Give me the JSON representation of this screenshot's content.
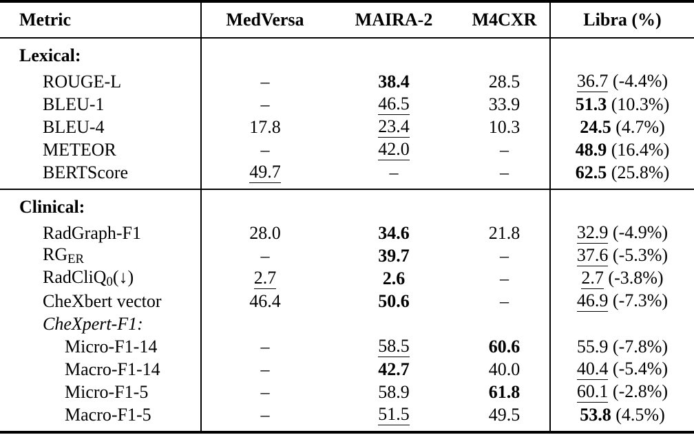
{
  "table": {
    "colors": {
      "text": "#000000",
      "background": "#ffffff",
      "rule": "#000000"
    },
    "headers": [
      {
        "label": "Metric"
      },
      {
        "label": "MedVersa"
      },
      {
        "label": "MAIRA-2"
      },
      {
        "label": "M4CXR"
      },
      {
        "label": "Libra (%)"
      }
    ],
    "rows": [
      {
        "type": "section",
        "indent": 0,
        "label": "Lexical:"
      },
      {
        "type": "metric",
        "indent": 1,
        "label": "ROUGE-L",
        "cells": [
          {
            "v": "–"
          },
          {
            "v": "38.4",
            "emph": "bold"
          },
          {
            "v": "28.5"
          },
          {
            "v": "36.7",
            "emph": "underline",
            "pct": "(-4.4%)"
          }
        ]
      },
      {
        "type": "metric",
        "indent": 1,
        "label": "BLEU-1",
        "cells": [
          {
            "v": "–"
          },
          {
            "v": "46.5",
            "emph": "underline"
          },
          {
            "v": "33.9"
          },
          {
            "v": "51.3",
            "emph": "bold",
            "pct": "(10.3%)"
          }
        ]
      },
      {
        "type": "metric",
        "indent": 1,
        "label": "BLEU-4",
        "cells": [
          {
            "v": "17.8"
          },
          {
            "v": "23.4",
            "emph": "underline"
          },
          {
            "v": "10.3"
          },
          {
            "v": "24.5",
            "emph": "bold",
            "pct": "(4.7%)"
          }
        ]
      },
      {
        "type": "metric",
        "indent": 1,
        "label": "METEOR",
        "cells": [
          {
            "v": "–"
          },
          {
            "v": "42.0",
            "emph": "underline"
          },
          {
            "v": "–"
          },
          {
            "v": "48.9",
            "emph": "bold",
            "pct": "(16.4%)"
          }
        ]
      },
      {
        "type": "metric",
        "indent": 1,
        "label": "BERTScore",
        "pad_bottom": true,
        "cells": [
          {
            "v": "49.7",
            "emph": "underline"
          },
          {
            "v": "–"
          },
          {
            "v": "–"
          },
          {
            "v": "62.5",
            "emph": "bold",
            "pct": "(25.8%)"
          }
        ]
      },
      {
        "type": "section",
        "indent": 0,
        "label": "Clinical:",
        "rule_above": true
      },
      {
        "type": "metric",
        "indent": 1,
        "label": "RadGraph-F1",
        "cells": [
          {
            "v": "28.0"
          },
          {
            "v": "34.6",
            "emph": "bold"
          },
          {
            "v": "21.8"
          },
          {
            "v": "32.9",
            "emph": "underline",
            "pct": "(-4.9%)"
          }
        ]
      },
      {
        "type": "metric",
        "indent": 1,
        "label": "RG",
        "label_sub": "ER",
        "cells": [
          {
            "v": "–"
          },
          {
            "v": "39.7",
            "emph": "bold"
          },
          {
            "v": "–"
          },
          {
            "v": "37.6",
            "emph": "underline",
            "pct": "(-5.3%)"
          }
        ]
      },
      {
        "type": "metric",
        "indent": 1,
        "label": "RadCliQ",
        "label_sub": "0",
        "label_after": "(↓)",
        "cells": [
          {
            "v": "2.7",
            "emph": "underline"
          },
          {
            "v": "2.6",
            "emph": "bold"
          },
          {
            "v": "–"
          },
          {
            "v": "2.7",
            "emph": "underline",
            "pct": "(-3.8%)"
          }
        ]
      },
      {
        "type": "metric",
        "indent": 1,
        "label": "CheXbert vector",
        "cells": [
          {
            "v": "46.4"
          },
          {
            "v": "50.6",
            "emph": "bold"
          },
          {
            "v": "–"
          },
          {
            "v": "46.9",
            "emph": "underline",
            "pct": "(-7.3%)"
          }
        ]
      },
      {
        "type": "subsection",
        "indent": 1,
        "label": "CheXpert-F1:"
      },
      {
        "type": "metric",
        "indent": 2,
        "label": "Micro-F1-14",
        "cells": [
          {
            "v": "–"
          },
          {
            "v": "58.5",
            "emph": "underline"
          },
          {
            "v": "60.6",
            "emph": "bold"
          },
          {
            "v": "55.9",
            "pct": "(-7.8%)"
          }
        ]
      },
      {
        "type": "metric",
        "indent": 2,
        "label": "Macro-F1-14",
        "cells": [
          {
            "v": "–"
          },
          {
            "v": "42.7",
            "emph": "bold"
          },
          {
            "v": "40.0"
          },
          {
            "v": "40.4",
            "emph": "underline",
            "pct": "(-5.4%)"
          }
        ]
      },
      {
        "type": "metric",
        "indent": 2,
        "label": "Micro-F1-5",
        "cells": [
          {
            "v": "–"
          },
          {
            "v": "58.9"
          },
          {
            "v": "61.8",
            "emph": "bold"
          },
          {
            "v": "60.1",
            "emph": "underline",
            "pct": "(-2.8%)"
          }
        ]
      },
      {
        "type": "metric",
        "indent": 2,
        "label": "Macro-F1-5",
        "pad_bottom": true,
        "cells": [
          {
            "v": "–"
          },
          {
            "v": "51.5",
            "emph": "underline"
          },
          {
            "v": "49.5"
          },
          {
            "v": "53.8",
            "emph": "bold",
            "pct": "(4.5%)"
          }
        ]
      }
    ]
  }
}
